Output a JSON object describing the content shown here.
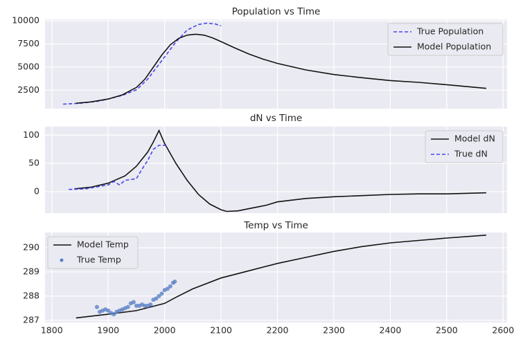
{
  "chart_data": [
    {
      "type": "line",
      "title": "Population vs Time",
      "xlim": [
        1788,
        2607
      ],
      "xticks": [
        1800,
        1900,
        2000,
        2100,
        2200,
        2300,
        2400,
        2500,
        2600
      ],
      "ylim": [
        515,
        10150
      ],
      "yticks": [
        2500,
        5000,
        7500,
        10000
      ],
      "grid": true,
      "legend": "upper right",
      "series": [
        {
          "name": "True Population",
          "color": "#4444ee",
          "style": "dashed",
          "x": [
            1820,
            1850,
            1880,
            1900,
            1925,
            1950,
            1970,
            1990,
            2000,
            2020,
            2040,
            2060,
            2075,
            2090,
            2100
          ],
          "values": [
            1000,
            1100,
            1300,
            1550,
            1950,
            2550,
            3700,
            5300,
            6100,
            7700,
            9000,
            9600,
            9750,
            9650,
            9450
          ]
        },
        {
          "name": "Model Population",
          "color": "#111111",
          "style": "solid",
          "x": [
            1843,
            1870,
            1900,
            1925,
            1950,
            1965,
            1980,
            1995,
            2010,
            2025,
            2040,
            2055,
            2070,
            2085,
            2100,
            2125,
            2150,
            2175,
            2200,
            2250,
            2300,
            2350,
            2400,
            2450,
            2500,
            2570
          ],
          "values": [
            1100,
            1250,
            1550,
            2000,
            2800,
            3700,
            5000,
            6300,
            7400,
            8100,
            8450,
            8550,
            8450,
            8150,
            7750,
            7050,
            6400,
            5850,
            5400,
            4700,
            4200,
            3850,
            3550,
            3350,
            3100,
            2700
          ]
        }
      ]
    },
    {
      "type": "line",
      "title": "dN vs Time",
      "xlim": [
        1788,
        2607
      ],
      "xticks": [
        1800,
        1900,
        2000,
        2100,
        2200,
        2300,
        2400,
        2500,
        2600
      ],
      "ylim": [
        -38,
        115
      ],
      "yticks": [
        0,
        50,
        100
      ],
      "grid": true,
      "legend": "upper right",
      "series": [
        {
          "name": "Model dN",
          "color": "#111111",
          "style": "solid",
          "x": [
            1840,
            1870,
            1900,
            1930,
            1950,
            1970,
            1980,
            1990,
            2000,
            2020,
            2040,
            2060,
            2080,
            2100,
            2110,
            2130,
            2160,
            2180,
            2200,
            2250,
            2300,
            2350,
            2400,
            2450,
            2500,
            2570
          ],
          "values": [
            5,
            8,
            15,
            28,
            45,
            70,
            88,
            108,
            85,
            50,
            20,
            -5,
            -22,
            -32,
            -35,
            -34,
            -28,
            -24,
            -18,
            -12,
            -9,
            -7,
            -5,
            -4,
            -4,
            -2
          ]
        },
        {
          "name": "True dN",
          "color": "#4444ee",
          "style": "dashed",
          "x": [
            1830,
            1860,
            1900,
            1910,
            1920,
            1930,
            1950,
            1960,
            1970,
            1980,
            1990,
            2000,
            2005
          ],
          "values": [
            4,
            5,
            12,
            18,
            12,
            20,
            23,
            40,
            55,
            75,
            82,
            82,
            80
          ]
        }
      ]
    },
    {
      "type": "line",
      "title": "Temp vs Time",
      "xlim": [
        1788,
        2607
      ],
      "xticks": [
        1800,
        1900,
        2000,
        2100,
        2200,
        2300,
        2400,
        2500,
        2600
      ],
      "ylim": [
        286.91,
        290.63
      ],
      "yticks": [
        287,
        288,
        289,
        290
      ],
      "grid": true,
      "legend": "upper left",
      "series": [
        {
          "name": "Model Temp",
          "color": "#111111",
          "style": "solid",
          "x": [
            1843,
            1900,
            1950,
            2000,
            2020,
            2050,
            2100,
            2150,
            2200,
            2250,
            2300,
            2350,
            2400,
            2450,
            2500,
            2570
          ],
          "values": [
            287.1,
            287.25,
            287.4,
            287.7,
            287.95,
            288.3,
            288.75,
            289.05,
            289.35,
            289.6,
            289.85,
            290.05,
            290.2,
            290.3,
            290.4,
            290.52
          ]
        },
        {
          "name": "True Temp",
          "color": "#5b7fc4",
          "style": "points",
          "x": [
            1880,
            1885,
            1890,
            1895,
            1900,
            1905,
            1910,
            1915,
            1920,
            1925,
            1930,
            1935,
            1940,
            1945,
            1950,
            1955,
            1960,
            1965,
            1970,
            1975,
            1980,
            1985,
            1990,
            1995,
            2000,
            2005,
            2010,
            2015,
            2018
          ],
          "values": [
            287.55,
            287.35,
            287.4,
            287.45,
            287.4,
            287.3,
            287.25,
            287.35,
            287.4,
            287.45,
            287.5,
            287.55,
            287.7,
            287.75,
            287.6,
            287.6,
            287.65,
            287.6,
            287.6,
            287.65,
            287.85,
            287.9,
            288.0,
            288.1,
            288.25,
            288.3,
            288.4,
            288.55,
            288.6
          ]
        }
      ]
    }
  ]
}
